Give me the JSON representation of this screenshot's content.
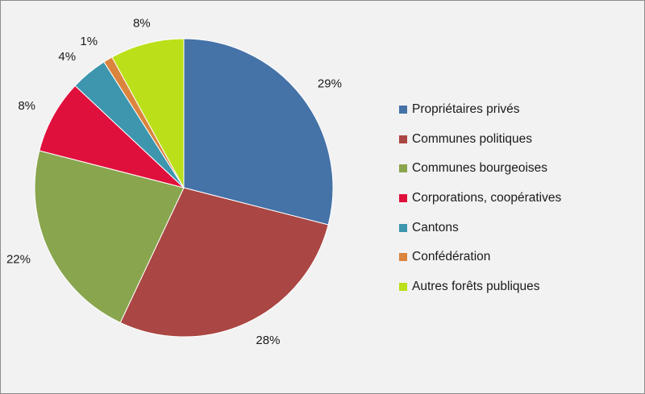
{
  "chart_data": {
    "type": "pie",
    "title": "",
    "start_angle_deg": 0,
    "direction": "clockwise",
    "legend_position": "right",
    "slices": [
      {
        "label": "Propriétaires privés",
        "value": 29,
        "display": "29%",
        "color": "#4572a7"
      },
      {
        "label": "Communes politiques",
        "value": 28,
        "display": "28%",
        "color": "#aa4643"
      },
      {
        "label": "Communes bourgeoises",
        "value": 22,
        "display": "22%",
        "color": "#89a54e"
      },
      {
        "label": "Corporations, coopératives",
        "value": 8,
        "display": "8%",
        "color": "#e0103c"
      },
      {
        "label": "Cantons",
        "value": 4,
        "display": "4%",
        "color": "#3d96ae"
      },
      {
        "label": "Confédération",
        "value": 1,
        "display": "1%",
        "color": "#db843d"
      },
      {
        "label": "Autres forêts publiques",
        "value": 8,
        "display": "8%",
        "color": "#bbe01a"
      }
    ]
  }
}
